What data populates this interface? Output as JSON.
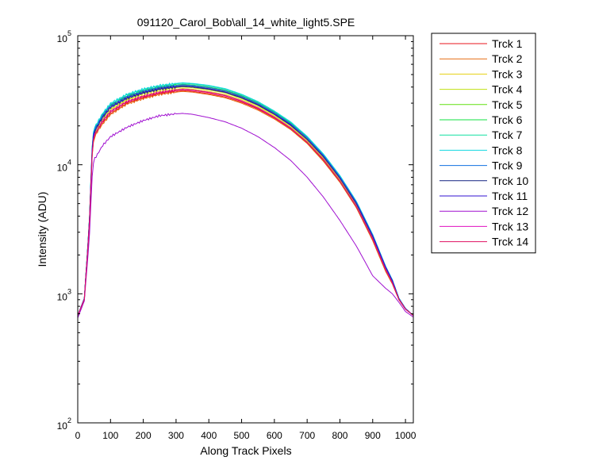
{
  "chart_data": {
    "type": "line",
    "title": "091120_Carol_Bob\\all_14_white_light5.SPE",
    "xlabel": "Along Track Pixels",
    "ylabel": "Intensity (ADU)",
    "xlim": [
      0,
      1024
    ],
    "ylim": [
      100,
      100000
    ],
    "yscale": "log",
    "grid": false,
    "legend_position": "outside-top-right",
    "x_ticks": [
      "0",
      "100",
      "200",
      "300",
      "400",
      "500",
      "600",
      "700",
      "800",
      "900",
      "1000"
    ],
    "x_tick_values": [
      0,
      100,
      200,
      300,
      400,
      500,
      600,
      700,
      800,
      900,
      1000
    ],
    "y_ticks": [
      {
        "value": 100,
        "base": "10",
        "exp": "2"
      },
      {
        "value": 1000,
        "base": "10",
        "exp": "3"
      },
      {
        "value": 10000,
        "base": "10",
        "exp": "4"
      },
      {
        "value": 100000,
        "base": "10",
        "exp": "5"
      }
    ],
    "x": [
      0,
      20,
      35,
      45,
      50,
      60,
      75,
      100,
      150,
      200,
      250,
      300,
      320,
      350,
      400,
      450,
      500,
      550,
      600,
      650,
      700,
      750,
      800,
      850,
      900,
      940,
      960,
      980,
      1000,
      1024
    ],
    "series": [
      {
        "name": "Trck 1",
        "color": "#e8161e",
        "values": [
          680,
          900,
          3200,
          14000,
          16500,
          18500,
          21000,
          25000,
          30000,
          33000,
          35500,
          37000,
          37500,
          37000,
          35500,
          33500,
          30500,
          27000,
          23000,
          19000,
          14800,
          10800,
          7400,
          4700,
          2600,
          1500,
          1200,
          900,
          760,
          680
        ]
      },
      {
        "name": "Trck 2",
        "color": "#e66b12",
        "values": [
          680,
          900,
          3200,
          13500,
          16000,
          18000,
          20500,
          24500,
          29500,
          32500,
          35000,
          36500,
          37000,
          36500,
          35000,
          33000,
          30000,
          26500,
          22600,
          18700,
          14600,
          10600,
          7300,
          4650,
          2580,
          1480,
          1190,
          900,
          760,
          680
        ]
      },
      {
        "name": "Trck 3",
        "color": "#e6d012",
        "values": [
          680,
          910,
          3300,
          14500,
          17000,
          19000,
          22000,
          26500,
          31500,
          34500,
          37000,
          38500,
          39000,
          38500,
          37000,
          35000,
          31800,
          28000,
          23800,
          19600,
          15200,
          11100,
          7600,
          4850,
          2700,
          1550,
          1230,
          910,
          765,
          680
        ]
      },
      {
        "name": "Trck 4",
        "color": "#c0e010",
        "values": [
          680,
          910,
          3300,
          14800,
          17500,
          19500,
          22500,
          27000,
          32000,
          35500,
          38000,
          39500,
          40000,
          39500,
          38000,
          36000,
          32500,
          28600,
          24300,
          20000,
          15500,
          11300,
          7750,
          4950,
          2750,
          1580,
          1250,
          915,
          765,
          680
        ]
      },
      {
        "name": "Trck 5",
        "color": "#60e010",
        "values": [
          680,
          920,
          3400,
          15500,
          18000,
          20000,
          23500,
          28500,
          33500,
          37000,
          39500,
          41000,
          41500,
          41000,
          39500,
          37300,
          33800,
          29700,
          25200,
          20700,
          16100,
          11700,
          8000,
          5100,
          2820,
          1600,
          1270,
          920,
          770,
          680
        ]
      },
      {
        "name": "Trck 6",
        "color": "#10e040",
        "values": [
          680,
          920,
          3400,
          15800,
          18500,
          20500,
          24000,
          29000,
          34000,
          37500,
          40000,
          41500,
          42000,
          41500,
          40000,
          37800,
          34300,
          30100,
          25500,
          21000,
          16300,
          11900,
          8100,
          5150,
          2850,
          1610,
          1275,
          920,
          770,
          680
        ]
      },
      {
        "name": "Trck 7",
        "color": "#10e0a0",
        "values": [
          680,
          925,
          3450,
          16000,
          19000,
          21000,
          24500,
          29500,
          34800,
          38200,
          40800,
          42300,
          42800,
          42300,
          40800,
          38500,
          34900,
          30600,
          25900,
          21300,
          16500,
          12000,
          8200,
          5200,
          2870,
          1620,
          1280,
          925,
          770,
          680
        ]
      },
      {
        "name": "Trck 8",
        "color": "#10d8e0",
        "values": [
          680,
          925,
          3450,
          16200,
          19200,
          21300,
          24800,
          30000,
          35200,
          38700,
          41200,
          42700,
          43200,
          42700,
          41200,
          38900,
          35200,
          30900,
          26100,
          21500,
          16600,
          12100,
          8250,
          5230,
          2880,
          1625,
          1285,
          925,
          770,
          680
        ]
      },
      {
        "name": "Trck 9",
        "color": "#1070e0",
        "values": [
          680,
          920,
          3400,
          15600,
          18600,
          20500,
          24000,
          28800,
          33800,
          37200,
          39700,
          41200,
          41700,
          41200,
          39700,
          37500,
          34000,
          29900,
          25300,
          20800,
          16200,
          11800,
          8050,
          5130,
          2840,
          1610,
          1270,
          920,
          770,
          680
        ]
      },
      {
        "name": "Trck 10",
        "color": "#102080",
        "values": [
          680,
          915,
          3350,
          15000,
          17800,
          19800,
          23000,
          27800,
          32700,
          36000,
          38500,
          40000,
          40500,
          40000,
          38500,
          36400,
          33000,
          29000,
          24600,
          20200,
          15700,
          11500,
          7850,
          5000,
          2780,
          1590,
          1260,
          915,
          765,
          680
        ]
      },
      {
        "name": "Trck 11",
        "color": "#3010d0",
        "values": [
          680,
          915,
          3350,
          15200,
          18000,
          20000,
          23200,
          28000,
          33000,
          36400,
          38900,
          40400,
          40900,
          40400,
          38900,
          36700,
          33300,
          29300,
          24800,
          20400,
          15800,
          11600,
          7900,
          5050,
          2800,
          1595,
          1265,
          915,
          765,
          680
        ]
      },
      {
        "name": "Trck 12",
        "color": "#a010d0",
        "values": [
          650,
          880,
          2600,
          9200,
          11000,
          12000,
          14000,
          16500,
          19500,
          22000,
          24000,
          24800,
          25000,
          24600,
          23200,
          21500,
          19200,
          16500,
          13600,
          10800,
          8000,
          5600,
          3700,
          2350,
          1380,
          1100,
          1000,
          860,
          730,
          660
        ]
      },
      {
        "name": "Trck 13",
        "color": "#e010c0",
        "values": [
          680,
          910,
          3250,
          14200,
          16800,
          18800,
          21800,
          26000,
          31000,
          34000,
          36500,
          38000,
          38500,
          38000,
          36500,
          34500,
          31300,
          27600,
          23400,
          19300,
          15000,
          11000,
          7500,
          4800,
          2680,
          1540,
          1220,
          910,
          762,
          680
        ]
      },
      {
        "name": "Trck 14",
        "color": "#e01060",
        "values": [
          680,
          905,
          3220,
          14000,
          16600,
          18600,
          21500,
          25700,
          30700,
          33700,
          36200,
          37700,
          38200,
          37700,
          36200,
          34200,
          31000,
          27300,
          23200,
          19100,
          14900,
          10900,
          7450,
          4750,
          2650,
          1520,
          1210,
          905,
          760,
          680
        ]
      }
    ]
  }
}
